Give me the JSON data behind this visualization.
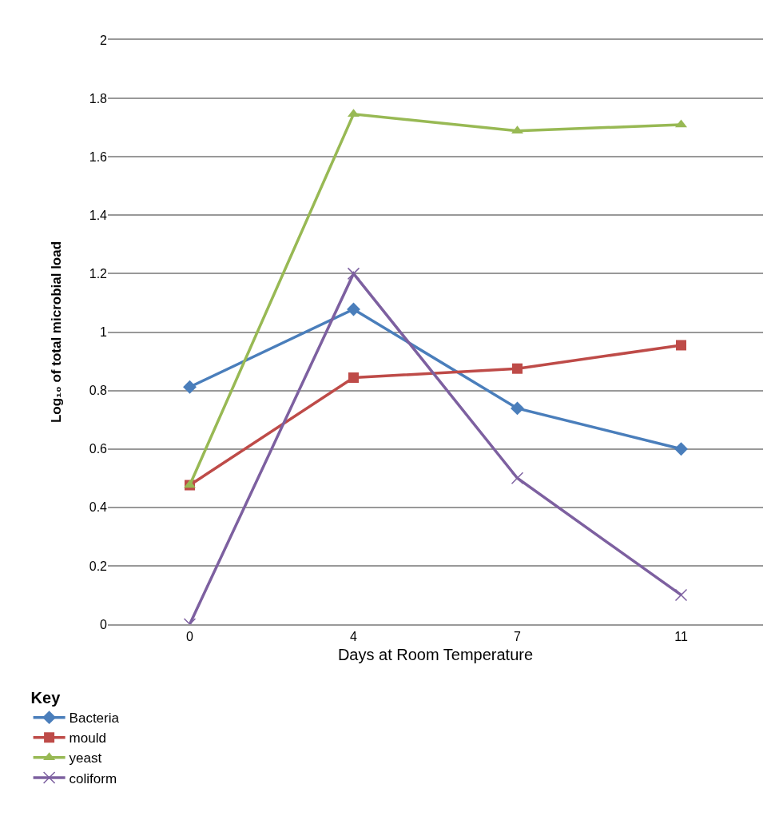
{
  "chart_data": {
    "type": "line",
    "xlabel": "Days at Room Temperature",
    "ylabel": "Log₁₀ of total microbial load",
    "legend_title": "Key",
    "categories": [
      "0",
      "4",
      "7",
      "11"
    ],
    "series": [
      {
        "name": "Bacteria",
        "color": "#4a7ebb",
        "marker": "diamond",
        "values": [
          0.812,
          1.078,
          0.739,
          0.6
        ]
      },
      {
        "name": "mould",
        "color": "#be4b48",
        "marker": "square",
        "values": [
          0.476,
          0.844,
          0.875,
          0.955
        ]
      },
      {
        "name": "yeast",
        "color": "#98b954",
        "marker": "triangle",
        "values": [
          0.476,
          1.746,
          1.689,
          1.71
        ]
      },
      {
        "name": "coliform",
        "color": "#7d60a0",
        "marker": "cross",
        "values": [
          0,
          1.2,
          0.5,
          0.1
        ]
      }
    ],
    "ylim": [
      0,
      2
    ],
    "yticks": [
      0,
      0.2,
      0.4,
      0.6,
      0.8,
      1,
      1.2,
      1.4,
      1.6,
      1.8,
      2
    ],
    "grid": "y",
    "legend": "bottom left"
  }
}
